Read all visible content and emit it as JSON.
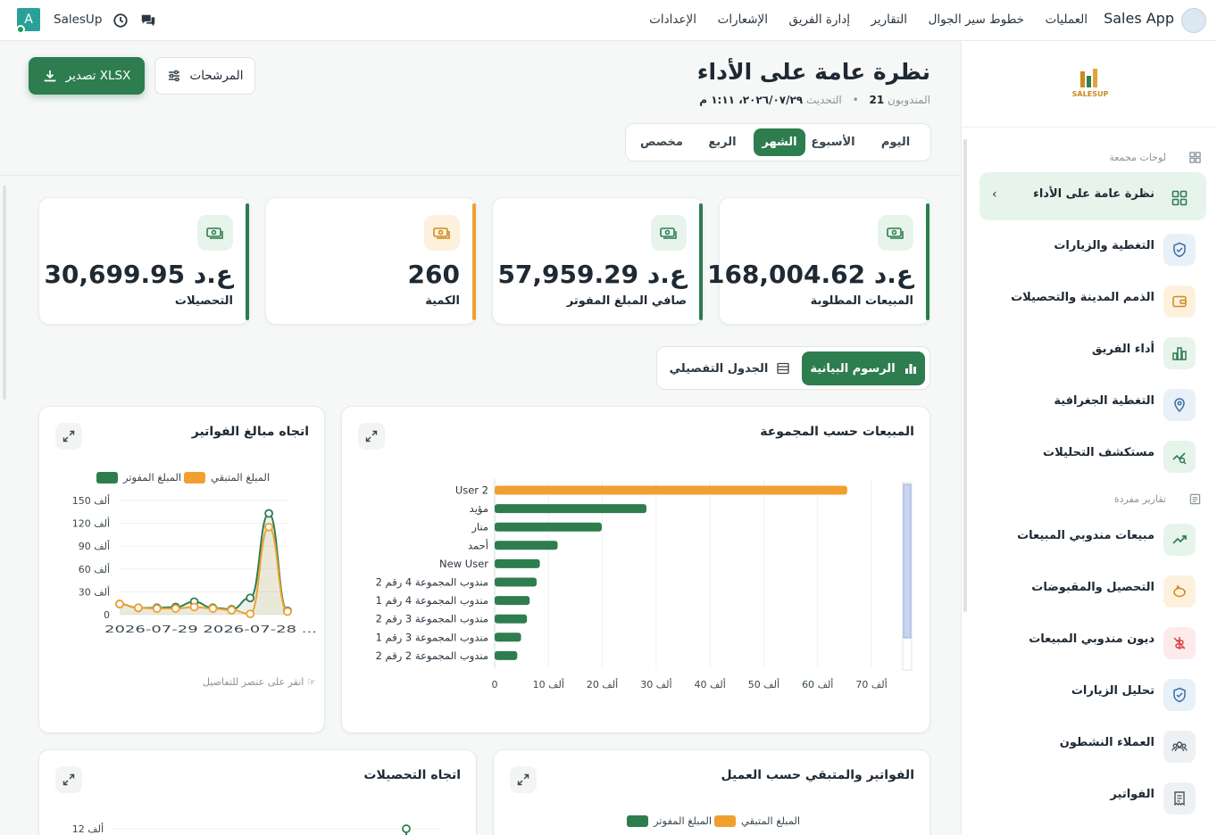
{
  "topbar": {
    "brand": "Sales App",
    "nav": [
      "العمليات",
      "خطوط سير الجوال",
      "التقارير",
      "إدارة الفريق",
      "الإشعارات",
      "الإعدادات"
    ],
    "user_name": "SalesUp",
    "avatar_letter": "A"
  },
  "sidebar": {
    "logo_text": "SALESUP",
    "section_dashboards": "لوحات مجمعة",
    "section_reports": "تقارير مفردة",
    "items": [
      {
        "label": "نظرة عامة على الأداء",
        "icon": "dashboard-icon",
        "active": true
      },
      {
        "label": "التغطية والزيارات",
        "icon": "badge-check-icon"
      },
      {
        "label": "الذمم المدينة والتحصيلات",
        "icon": "wallet-icon"
      },
      {
        "label": "أداء الفريق",
        "icon": "bar-chart-icon"
      },
      {
        "label": "التغطية الجغرافية",
        "icon": "map-pin-icon"
      },
      {
        "label": "مستكشف التحليلات",
        "icon": "analytics-icon"
      },
      {
        "label": "مبيعات مندوبي المبيعات",
        "icon": "trending-up-icon"
      },
      {
        "label": "التحصيل والمقبوضات",
        "icon": "piggy-bank-icon"
      },
      {
        "label": "ديون مندوبي المبيعات",
        "icon": "debt-icon"
      },
      {
        "label": "تحليل الزيارات",
        "icon": "badge-check-icon"
      },
      {
        "label": "العملاء النشطون",
        "icon": "users-icon"
      },
      {
        "label": "الفواتير",
        "icon": "receipt-icon"
      }
    ]
  },
  "header": {
    "title": "نظرة عامة على الأداء",
    "reps_label": "المندوبون",
    "reps_count": "21",
    "updated_label": "التحديث",
    "updated_value": "٢٠٢٦/٠٧/٢٩، ١:١١ م",
    "export_label": "تصدير XLSX",
    "filters_label": "المرشحات"
  },
  "periods": [
    "اليوم",
    "الأسبوع",
    "الشهر",
    "الربع",
    "مخصص"
  ],
  "active_period": "الشهر",
  "kpis": [
    {
      "label": "المبيعات المطلوبة",
      "value": "168,004.62 ع.د",
      "color": "#2e7d4f"
    },
    {
      "label": "صافي المبلغ المفوتر",
      "value": "57,959.29 ع.د",
      "color": "#2e7d4f"
    },
    {
      "label": "الكمية",
      "value": "260",
      "color": "#f0a030"
    },
    {
      "label": "التحصيلات",
      "value": "30,699.95 ع.د",
      "color": "#2e7d4f"
    }
  ],
  "view_toggle": {
    "charts": "الرسوم البيانية",
    "table": "الجدول التفصيلي"
  },
  "panels": {
    "sales_by_group": "المبيعات حسب المجموعة",
    "invoice_trend": "اتجاه مبالغ الفواتير",
    "invoices_by_customer": "الفواتير والمتبقي حسب العميل",
    "collections_trend": "اتجاه التحصيلات",
    "hint": "انقر على عنصر للتفاصيل"
  },
  "legend": {
    "invoiced": "المبلغ المفوتر",
    "remaining": "المبلغ المتبقي"
  },
  "colors": {
    "green": "#2e7d4f",
    "orange": "#f0a030"
  },
  "chart_data": [
    {
      "type": "bar",
      "title": "المبيعات حسب المجموعة",
      "orientation": "horizontal",
      "categories": [
        "User 2",
        "مؤيد",
        "منار",
        "أحمد",
        "New User",
        "مندوب المجموعة 4 رقم 2",
        "مندوب المجموعة 4 رقم 1",
        "مندوب المجموعة 3 رقم 2",
        "مندوب المجموعة 3 رقم 1",
        "مندوب المجموعة 2 رقم 2"
      ],
      "values": [
        65500,
        28200,
        19900,
        11700,
        8400,
        7800,
        6500,
        6000,
        4900,
        4200
      ],
      "bar_colors": [
        "#f0a030",
        "#2e7d4f",
        "#2e7d4f",
        "#2e7d4f",
        "#2e7d4f",
        "#2e7d4f",
        "#2e7d4f",
        "#2e7d4f",
        "#2e7d4f",
        "#2e7d4f"
      ],
      "xlim": [
        0,
        70000
      ],
      "x_ticks": [
        "0",
        "10 ألف",
        "20 ألف",
        "30 ألف",
        "40 ألف",
        "50 ألف",
        "60 ألف",
        "70 ألف"
      ]
    },
    {
      "type": "line",
      "title": "اتجاه مبالغ الفواتير",
      "x_tick_text": "2026-07-29 2026-07-28 ...",
      "y_ticks": [
        "0",
        "30 ألف",
        "60 ألف",
        "90 ألف",
        "120 ألف",
        "150 ألف"
      ],
      "ylim": [
        0,
        150000
      ],
      "series": [
        {
          "name": "المبلغ المفوتر",
          "color": "#2e7d4f",
          "values": [
            14000,
            9000,
            9000,
            10000,
            17000,
            9000,
            7000,
            22000,
            133000,
            5000
          ]
        },
        {
          "name": "المبلغ المتبقي",
          "color": "#f0a030",
          "values": [
            14000,
            9000,
            8000,
            8000,
            10000,
            8000,
            6000,
            1000,
            115000,
            4000
          ]
        }
      ]
    },
    {
      "type": "line",
      "title": "اتجاه التحصيلات",
      "y_ticks": [
        "12 ألف"
      ]
    }
  ]
}
